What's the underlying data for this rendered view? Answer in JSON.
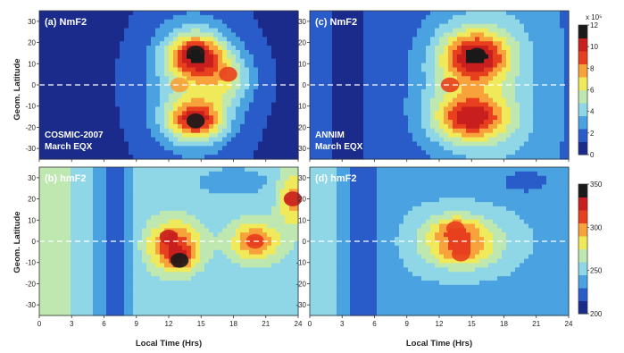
{
  "chart_data": [
    {
      "type": "heatmap",
      "panel_label": "(a) NmF2",
      "annotation": [
        "COSMIC-2007",
        "March EQX"
      ],
      "xlim": [
        0,
        24
      ],
      "ylim": [
        -35,
        35
      ],
      "xticks": [
        0,
        3,
        6,
        9,
        12,
        15,
        18,
        21,
        24
      ],
      "yticks": [
        30,
        20,
        10,
        0,
        -10,
        -20,
        -30
      ],
      "ylabel": "Geom. Latitude",
      "xlabel": "",
      "colorscale": "nmf2",
      "peaks": [
        {
          "lt": 14.5,
          "lat": 15,
          "value": 11.8
        },
        {
          "lt": 14.5,
          "lat": -17,
          "value": 11.6
        },
        {
          "lt": 13.0,
          "lat": 0,
          "value": 8.0
        },
        {
          "lt": 17.5,
          "lat": 5,
          "value": 8.5
        }
      ]
    },
    {
      "type": "heatmap",
      "panel_label": "(c) NmF2",
      "annotation": [
        "ANNIM",
        "March EQX"
      ],
      "xlim": [
        0,
        24
      ],
      "ylim": [
        -35,
        35
      ],
      "xticks": [
        0,
        3,
        6,
        9,
        12,
        15,
        18,
        21,
        24
      ],
      "yticks": [
        30,
        20,
        10,
        0,
        -10,
        -20,
        -30
      ],
      "ylabel": "",
      "xlabel": "",
      "colorscale": "nmf2",
      "colorbar": {
        "label": "x 10⁵",
        "ticks": [
          12,
          10,
          8,
          6,
          4,
          2,
          0
        ],
        "range": [
          0,
          12
        ]
      },
      "peaks": [
        {
          "lt": 15.5,
          "lat": 14,
          "value": 11.8
        },
        {
          "lt": 15.0,
          "lat": -16,
          "value": 10.5
        },
        {
          "lt": 13.0,
          "lat": 0,
          "value": 9.0
        }
      ]
    },
    {
      "type": "heatmap",
      "panel_label": "(b) hmF2",
      "annotation": [],
      "xlim": [
        0,
        24
      ],
      "ylim": [
        -35,
        35
      ],
      "xticks": [
        0,
        3,
        6,
        9,
        12,
        15,
        18,
        21,
        24
      ],
      "yticks": [
        30,
        20,
        10,
        0,
        -10,
        -20,
        -30
      ],
      "ylabel": "Geom. Latitude",
      "xlabel": "Local Time (Hrs)",
      "colorscale": "hmf2",
      "peaks": [
        {
          "lt": 13,
          "lat": -9,
          "value": 348
        },
        {
          "lt": 12,
          "lat": 2,
          "value": 325
        },
        {
          "lt": 20,
          "lat": 0,
          "value": 318
        },
        {
          "lt": 23.5,
          "lat": 20,
          "value": 320
        }
      ]
    },
    {
      "type": "heatmap",
      "panel_label": "(d) hmF2",
      "annotation": [],
      "xlim": [
        0,
        24
      ],
      "ylim": [
        -35,
        35
      ],
      "xticks": [
        0,
        3,
        6,
        9,
        12,
        15,
        18,
        21,
        24
      ],
      "yticks": [
        30,
        20,
        10,
        0,
        -10,
        -20,
        -30
      ],
      "ylabel": "",
      "xlabel": "Local Time (Hrs)",
      "colorscale": "hmf2",
      "colorbar": {
        "label": "",
        "ticks": [
          350,
          300,
          250,
          200
        ],
        "range": [
          200,
          350
        ]
      },
      "peaks": [
        {
          "lt": 13.5,
          "lat": 6,
          "value": 318
        },
        {
          "lt": 14.0,
          "lat": -6,
          "value": 312
        }
      ]
    }
  ],
  "colors": {
    "ramp": [
      "#1a2b8c",
      "#2a5cc9",
      "#4aa3e0",
      "#8fd6e6",
      "#bfe8b0",
      "#f0ea5a",
      "#f7a23a",
      "#e8401e",
      "#c81e1e",
      "#1a1a1a"
    ],
    "equator_line": "#ffffff"
  }
}
